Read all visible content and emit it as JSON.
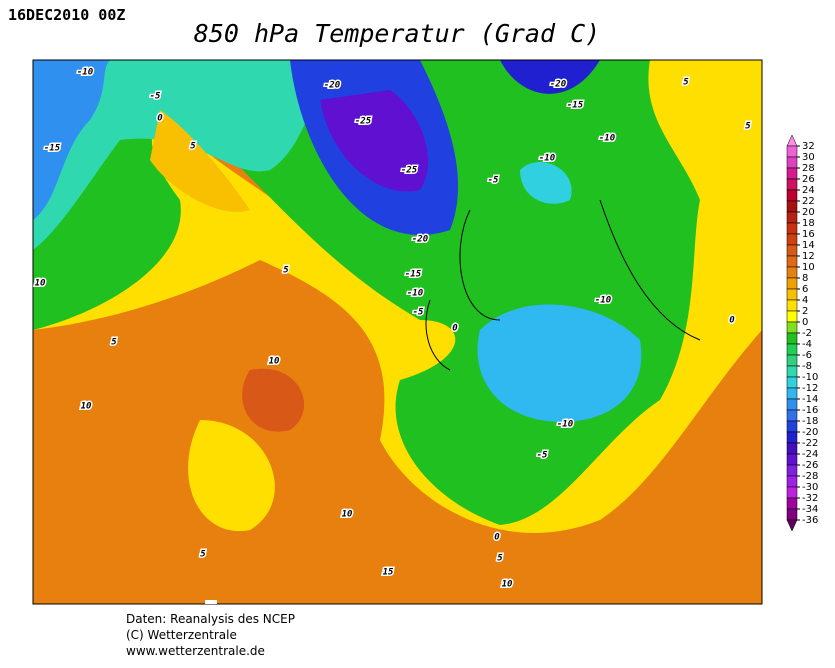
{
  "header": {
    "date": "16DEC2010 00Z",
    "title": "850 hPa Temperatur (Grad C)"
  },
  "colorbar": {
    "levels": [
      32,
      30,
      28,
      26,
      24,
      22,
      20,
      18,
      16,
      14,
      12,
      10,
      8,
      6,
      4,
      2,
      0,
      -2,
      -4,
      -6,
      -8,
      -10,
      -12,
      -14,
      -16,
      -18,
      -20,
      -22,
      -24,
      -26,
      -28,
      -30,
      -32,
      -34,
      -36
    ],
    "colors": [
      "#ff8ce8",
      "#f060d8",
      "#e040c0",
      "#d81890",
      "#d01060",
      "#c00030",
      "#a81010",
      "#b82010",
      "#c83010",
      "#d04010",
      "#d85818",
      "#e06818",
      "#e88010",
      "#f0a000",
      "#f8c000",
      "#ffdf00",
      "#ffff00",
      "#80e020",
      "#20c020",
      "#20d050",
      "#30d080",
      "#30d8b0",
      "#30d0e0",
      "#30b8f0",
      "#3090f0",
      "#3070e8",
      "#2040e0",
      "#2020d0",
      "#4010c0",
      "#6010d0",
      "#8020e0",
      "#a020e8",
      "#c020e0",
      "#a000a0",
      "#800080",
      "#600060"
    ]
  },
  "contour_labels": [
    "-10",
    "-5",
    "0",
    "5",
    "-15",
    "10",
    "-20",
    "-25",
    "-25",
    "-20",
    "-15",
    "-10",
    "-5",
    "0",
    "5",
    "5",
    "10",
    "10",
    "10",
    "5",
    "15",
    "0",
    "5",
    "10",
    "-5",
    "-10",
    "-10",
    "-10",
    "-10",
    "-5",
    "-20",
    "-15",
    "5",
    "5",
    "0"
  ],
  "footer": {
    "line1": "Daten: Reanalysis des NCEP",
    "line2": "(C) Wetterzentrale",
    "line3": "www.wetterzentrale.de"
  }
}
